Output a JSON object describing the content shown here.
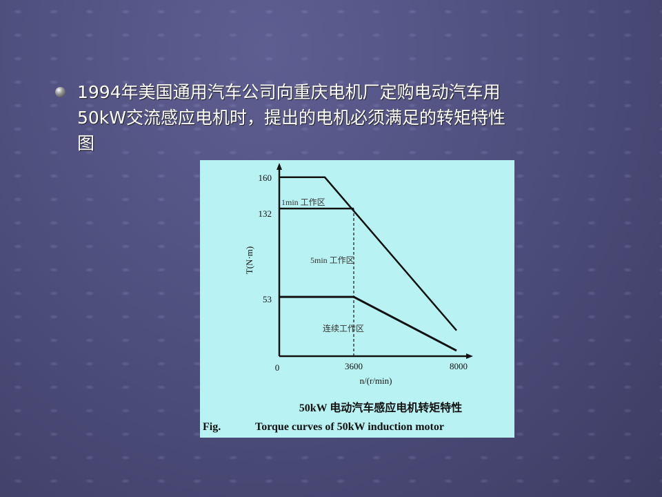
{
  "slide": {
    "bullet_lines": [
      "1994年美国通用汽车公司向重庆电机厂定购电动汽车用",
      "50kW交流感应电机时，提出的电机必须满足的转矩特性",
      "图"
    ]
  },
  "colors": {
    "panel_bg": "#b9f2f2",
    "slide_bg": "#50507f",
    "line": "#111111"
  },
  "chart_data": {
    "type": "line",
    "xlabel": "n/(r/min)",
    "ylabel": "T(N·m)",
    "x_ticks": [
      "0",
      "3600",
      "8000"
    ],
    "y_ticks": [
      "53",
      "132",
      "160"
    ],
    "xlim": [
      0,
      8000
    ],
    "ylim": [
      0,
      160
    ],
    "grid": false,
    "caption_cn": "50kW 电动汽车感应电机转矩特性",
    "caption_fig": "Fig.",
    "caption_en": "Torque curves of 50kW induction motor",
    "zones": [
      "1min 工作区",
      "5min 工作区",
      "连续工作区"
    ],
    "series": [
      {
        "points": [
          [
            0,
            160
          ],
          [
            2200,
            160
          ],
          [
            8000,
            23
          ]
        ]
      },
      {
        "points": [
          [
            0,
            132
          ],
          [
            3600,
            132
          ]
        ]
      },
      {
        "points": [
          [
            0,
            53
          ],
          [
            3600,
            53
          ],
          [
            8000,
            5
          ]
        ]
      }
    ],
    "dashed_line": {
      "x": 3600,
      "y_range": [
        0,
        132
      ]
    }
  }
}
